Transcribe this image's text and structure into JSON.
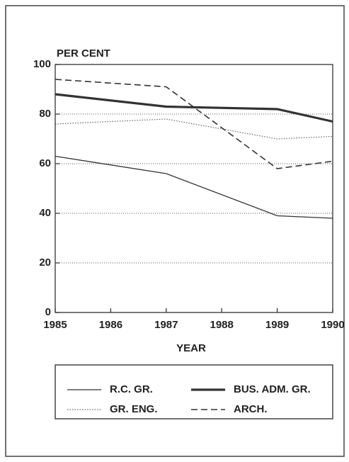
{
  "chart_data": {
    "type": "line",
    "y_label": "PER CENT",
    "x_label": "YEAR",
    "x": [
      1985,
      1987,
      1989,
      1990
    ],
    "xlim": [
      1985,
      1990
    ],
    "xticks": [
      1985,
      1986,
      1987,
      1988,
      1989,
      1990
    ],
    "ylim": [
      0,
      100
    ],
    "yticks": [
      0,
      20,
      40,
      60,
      80,
      100
    ],
    "grid": true,
    "series": [
      {
        "name": "R.C. GR.",
        "color": "#333333",
        "style": "solid",
        "values": [
          63,
          56,
          39,
          38
        ]
      },
      {
        "name": "BUS. ADM. GR.",
        "color": "#333333",
        "style": "thick",
        "values": [
          88,
          83,
          82,
          77
        ]
      },
      {
        "name": "GR. ENG.",
        "color": "#333333",
        "style": "dotted",
        "values": [
          76,
          78,
          70,
          71
        ]
      },
      {
        "name": "ARCH.",
        "color": "#333333",
        "style": "dashed",
        "values": [
          94,
          91,
          58,
          61
        ]
      }
    ]
  }
}
